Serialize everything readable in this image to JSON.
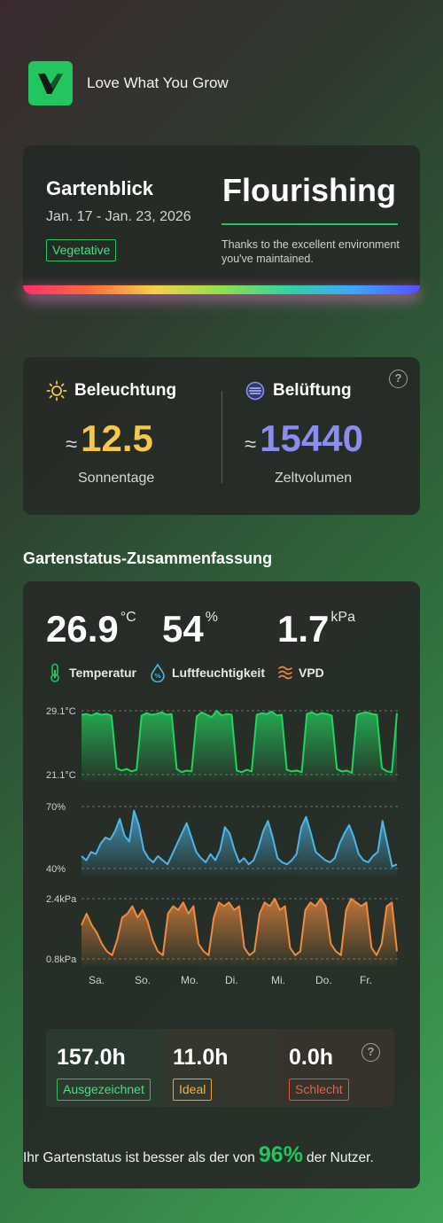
{
  "brand": {
    "name": "Love What You Grow"
  },
  "overview": {
    "garden_name": "Gartenblick",
    "date_range": "Jan. 17 - Jan. 23, 2026",
    "stage": "Vegetative",
    "status": "Flourishing",
    "status_note": "Thanks to the excellent environment you've maintained."
  },
  "light_air": {
    "light": {
      "title": "Beleuchtung",
      "approx": "≈",
      "value": "12.5",
      "label": "Sonnentage",
      "color": "#f5c84c"
    },
    "air": {
      "title": "Belüftung",
      "approx": "≈",
      "value": "15440",
      "label": "Zeltvolumen",
      "color": "#8b8cf0"
    }
  },
  "summary": {
    "section_title": "Gartenstatus-Zusammenfassung",
    "temperature": {
      "value": "26.9",
      "unit": "°C",
      "label": "Temperatur"
    },
    "humidity": {
      "value": "54",
      "unit": "%",
      "label": "Luftfeuchtigkeit"
    },
    "vpd": {
      "value": "1.7",
      "unit": "kPa",
      "label": "VPD"
    },
    "hours": [
      {
        "value": "157.0h",
        "label": "Ausgezeichnet",
        "color": "#22c55e"
      },
      {
        "value": "11.0h",
        "label": "Ideal",
        "color": "#e8a33a"
      },
      {
        "value": "0.0h",
        "label": "Schlecht",
        "color": "#d9573b"
      }
    ],
    "sentence_before": "Ihr Gartenstatus ist besser als der von",
    "percent": "96%",
    "sentence_after": "der Nutzer."
  },
  "chart_data": {
    "type": "area",
    "x_labels": [
      "Sa.",
      "So.",
      "Mo.",
      "Di.",
      "Mi.",
      "Do.",
      "Fr."
    ],
    "series": [
      {
        "name": "Temperatur",
        "unit": "°C",
        "ylim": [
          21.1,
          29.1
        ],
        "tick_labels": [
          "29.1°C",
          "21.1°C"
        ],
        "color": "#22d35e",
        "values": [
          28.6,
          28.7,
          28.5,
          28.8,
          28.6,
          28.7,
          28.5,
          21.9,
          21.6,
          21.8,
          21.5,
          21.7,
          28.5,
          28.8,
          28.6,
          28.7,
          28.9,
          28.6,
          28.7,
          21.8,
          21.4,
          21.6,
          21.5,
          28.4,
          28.9,
          28.6,
          28.3,
          29.1,
          28.5,
          28.7,
          28.6,
          21.6,
          21.4,
          21.7,
          21.5,
          28.6,
          28.8,
          28.7,
          29.0,
          28.5,
          28.6,
          21.7,
          21.5,
          21.6,
          21.4,
          28.7,
          28.9,
          28.6,
          28.8,
          28.7,
          28.5,
          21.8,
          21.5,
          21.6,
          21.3,
          28.6,
          28.8,
          28.9,
          28.7,
          28.6,
          21.9,
          21.5,
          21.4,
          28.8
        ]
      },
      {
        "name": "Luftfeuchtigkeit",
        "unit": "%",
        "ylim": [
          40,
          70
        ],
        "tick_labels": [
          "70%",
          "40%"
        ],
        "color": "#4db5e8",
        "values": [
          46,
          44,
          48,
          47,
          52,
          55,
          54,
          58,
          64,
          56,
          53,
          68,
          61,
          49,
          45,
          43,
          46,
          44,
          42,
          47,
          52,
          57,
          62,
          55,
          48,
          45,
          43,
          47,
          44,
          49,
          60,
          57,
          49,
          43,
          45,
          42,
          44,
          50,
          58,
          63,
          55,
          45,
          43,
          42,
          44,
          47,
          60,
          65,
          57,
          48,
          46,
          44,
          43,
          45,
          52,
          57,
          61,
          55,
          47,
          44,
          43,
          46,
          48,
          63,
          52,
          41,
          42
        ]
      },
      {
        "name": "VPD",
        "unit": "kPa",
        "ylim": [
          0.8,
          2.4
        ],
        "tick_labels": [
          "2.4kPa",
          "0.8kPa"
        ],
        "color": "#ee8b3f",
        "values": [
          1.7,
          2.0,
          1.7,
          1.5,
          1.2,
          1.0,
          0.9,
          1.3,
          1.9,
          2.0,
          2.2,
          1.9,
          2.1,
          1.8,
          1.3,
          1.0,
          0.9,
          2.0,
          2.2,
          2.1,
          2.3,
          2.0,
          2.2,
          1.2,
          1.0,
          0.9,
          1.9,
          2.3,
          2.2,
          2.3,
          2.1,
          2.2,
          1.1,
          0.9,
          1.0,
          2.0,
          2.3,
          2.2,
          2.4,
          2.1,
          2.2,
          1.1,
          0.9,
          1.0,
          2.1,
          2.3,
          2.2,
          2.4,
          2.2,
          1.2,
          1.0,
          0.9,
          2.1,
          2.4,
          2.3,
          2.2,
          2.3,
          1.1,
          0.9,
          1.2,
          2.2,
          2.3,
          1.0
        ]
      }
    ]
  }
}
